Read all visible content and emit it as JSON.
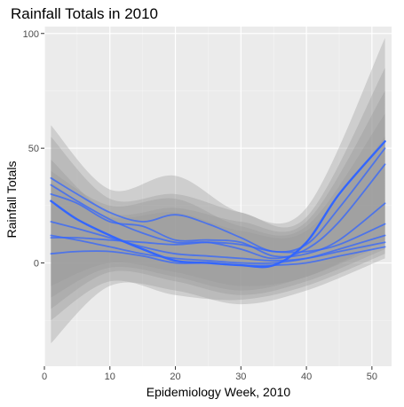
{
  "chart_data": {
    "type": "line",
    "title": "Rainfall Totals in 2010",
    "xlabel": "Epidemiology Week, 2010",
    "ylabel": "Rainfall Totals",
    "xlim": [
      0,
      53
    ],
    "ylim": [
      -45,
      103
    ],
    "x_ticks": [
      0,
      10,
      20,
      30,
      40,
      50
    ],
    "y_ticks": [
      0,
      50,
      100
    ],
    "grid": true,
    "colors": {
      "panel": "#ebebeb",
      "grid_major": "#ffffff",
      "ribbon": "#999999",
      "line": "#3366ff"
    },
    "ribbons": [
      {
        "x": [
          1,
          10,
          20,
          30,
          40,
          52
        ],
        "lower": [
          -35,
          -10,
          -12,
          -18,
          -12,
          2
        ],
        "upper": [
          60,
          32,
          38,
          22,
          24,
          98
        ]
      },
      {
        "x": [
          1,
          10,
          20,
          30,
          40,
          52
        ],
        "lower": [
          -25,
          -8,
          -14,
          -16,
          -10,
          4
        ],
        "upper": [
          55,
          28,
          30,
          22,
          20,
          85
        ]
      },
      {
        "x": [
          1,
          10,
          20,
          30,
          40,
          52
        ],
        "lower": [
          -20,
          -4,
          -8,
          -14,
          -8,
          6
        ],
        "upper": [
          45,
          22,
          24,
          18,
          18,
          75
        ]
      },
      {
        "x": [
          1,
          10,
          20,
          30,
          40,
          52
        ],
        "lower": [
          -15,
          -2,
          -6,
          -12,
          -6,
          8
        ],
        "upper": [
          40,
          25,
          28,
          16,
          16,
          65
        ]
      },
      {
        "x": [
          1,
          10,
          20,
          30,
          40,
          52
        ],
        "lower": [
          -10,
          0,
          -4,
          -10,
          -6,
          10
        ],
        "upper": [
          35,
          20,
          22,
          14,
          14,
          55
        ]
      }
    ],
    "series": [
      {
        "x": [
          1,
          5,
          10,
          15,
          20,
          25,
          30,
          35,
          40,
          45,
          52
        ],
        "values": [
          27,
          19,
          12,
          6,
          1,
          0,
          -1,
          -1,
          9,
          30,
          53
        ]
      },
      {
        "x": [
          1,
          5,
          10,
          15,
          20,
          25,
          30,
          35,
          40,
          45,
          52
        ],
        "values": [
          37,
          30,
          22,
          18,
          21,
          17,
          11,
          5,
          8,
          24,
          50
        ]
      },
      {
        "x": [
          1,
          5,
          10,
          15,
          20,
          25,
          30,
          35,
          40,
          45,
          52
        ],
        "values": [
          34,
          27,
          19,
          13,
          9,
          9,
          6,
          2,
          6,
          18,
          43
        ]
      },
      {
        "x": [
          1,
          5,
          10,
          15,
          20,
          25,
          30,
          35,
          40,
          45,
          52
        ],
        "values": [
          30,
          26,
          18,
          16,
          10,
          10,
          9,
          3,
          4,
          10,
          26
        ]
      },
      {
        "x": [
          1,
          5,
          10,
          15,
          20,
          25,
          30,
          35,
          40,
          45,
          52
        ],
        "values": [
          11,
          11,
          10,
          9,
          8,
          9,
          8,
          5,
          5,
          8,
          17
        ]
      },
      {
        "x": [
          1,
          5,
          10,
          15,
          20,
          25,
          30,
          35,
          40,
          45,
          52
        ],
        "values": [
          12,
          10,
          7,
          4,
          2,
          1,
          0,
          0,
          2,
          6,
          12
        ]
      },
      {
        "x": [
          1,
          5,
          10,
          15,
          20,
          25,
          30,
          35,
          40,
          45,
          52
        ],
        "values": [
          4,
          5,
          5,
          3,
          0,
          0,
          -1,
          -1,
          0,
          3,
          7
        ]
      },
      {
        "x": [
          1,
          5,
          10,
          15,
          20,
          25,
          30,
          35,
          40,
          45,
          52
        ],
        "values": [
          18,
          15,
          11,
          7,
          4,
          3,
          2,
          1,
          2,
          5,
          9
        ]
      }
    ]
  }
}
